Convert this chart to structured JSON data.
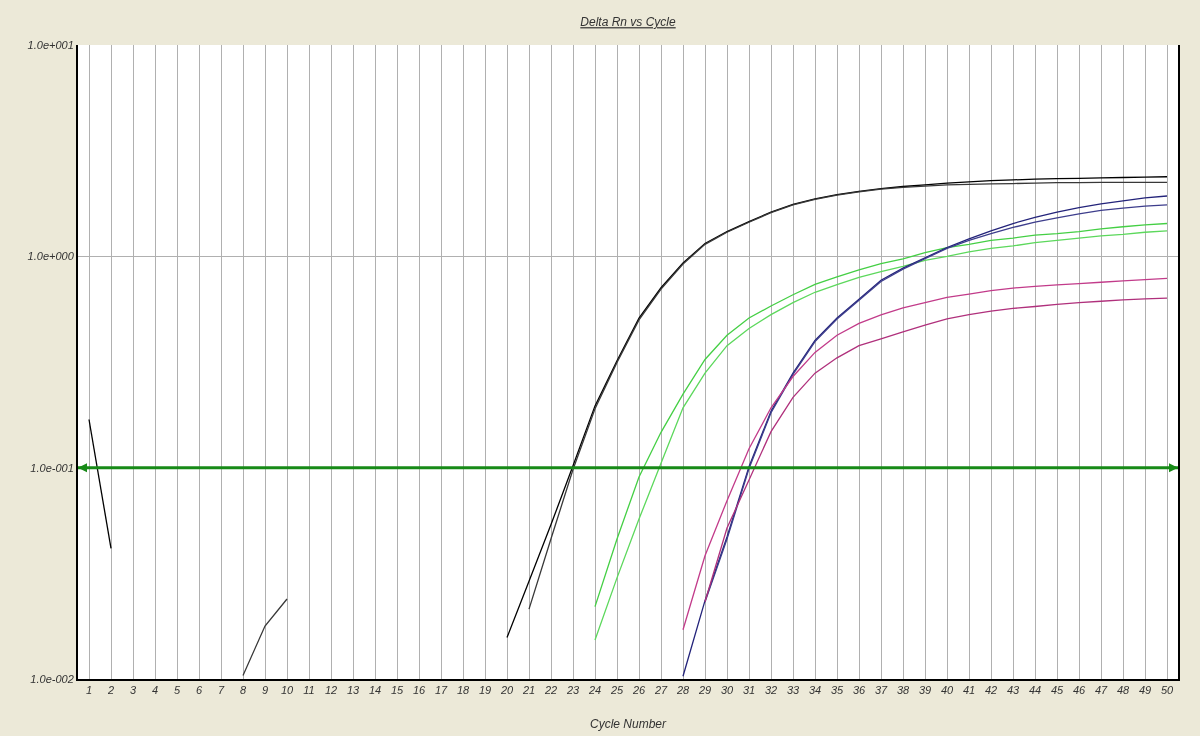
{
  "chart_data": {
    "type": "line",
    "title": "Delta Rn vs Cycle",
    "xlabel": "Cycle Number",
    "x": [
      1,
      2,
      3,
      4,
      5,
      6,
      7,
      8,
      9,
      10,
      11,
      12,
      13,
      14,
      15,
      16,
      17,
      18,
      19,
      20,
      21,
      22,
      23,
      24,
      25,
      26,
      27,
      28,
      29,
      30,
      31,
      32,
      33,
      34,
      35,
      36,
      37,
      38,
      39,
      40,
      41,
      42,
      43,
      44,
      45,
      46,
      47,
      48,
      49,
      50
    ],
    "series": [
      {
        "color": "#000000",
        "values": [
          0.169,
          0.0415,
          null,
          null,
          null,
          null,
          null,
          null,
          null,
          null,
          null,
          null,
          null,
          null,
          null,
          null,
          null,
          null,
          null,
          0.0157,
          0.029,
          0.0538,
          0.102,
          0.196,
          0.32,
          0.51,
          0.71,
          0.93,
          1.15,
          1.31,
          1.46,
          1.62,
          1.76,
          1.87,
          1.96,
          2.03,
          2.09,
          2.14,
          2.18,
          2.22,
          2.25,
          2.28,
          2.3,
          2.32,
          2.33,
          2.34,
          2.35,
          2.36,
          2.37,
          2.38
        ]
      },
      {
        "color": "#383838",
        "values": [
          null,
          null,
          null,
          null,
          null,
          null,
          null,
          0.0104,
          0.0178,
          0.0239,
          null,
          null,
          null,
          null,
          null,
          null,
          null,
          null,
          null,
          null,
          0.0214,
          0.0461,
          0.098,
          0.19,
          0.315,
          0.5,
          0.7,
          0.92,
          1.14,
          1.3,
          1.45,
          1.61,
          1.75,
          1.86,
          1.95,
          2.02,
          2.08,
          2.12,
          2.15,
          2.18,
          2.19,
          2.2,
          2.21,
          2.22,
          2.23,
          2.23,
          2.24,
          2.24,
          2.24,
          2.24
        ]
      },
      {
        "color": "#44cf44",
        "values": [
          null,
          null,
          null,
          null,
          null,
          null,
          null,
          null,
          null,
          null,
          null,
          null,
          null,
          null,
          null,
          null,
          null,
          null,
          null,
          null,
          null,
          null,
          null,
          0.022,
          0.046,
          0.0904,
          0.147,
          0.223,
          0.325,
          0.423,
          0.511,
          0.582,
          0.658,
          0.736,
          0.8,
          0.863,
          0.923,
          0.973,
          1.04,
          1.1,
          1.14,
          1.19,
          1.22,
          1.26,
          1.28,
          1.31,
          1.35,
          1.38,
          1.41,
          1.43
        ]
      },
      {
        "color": "#5cd85c",
        "values": [
          null,
          null,
          null,
          null,
          null,
          null,
          null,
          null,
          null,
          null,
          null,
          null,
          null,
          null,
          null,
          null,
          null,
          null,
          null,
          null,
          null,
          null,
          null,
          0.0153,
          0.0301,
          0.0571,
          0.105,
          0.192,
          0.28,
          0.378,
          0.456,
          0.53,
          0.604,
          0.676,
          0.734,
          0.795,
          0.846,
          0.896,
          0.958,
          1.0,
          1.05,
          1.09,
          1.12,
          1.16,
          1.19,
          1.22,
          1.25,
          1.27,
          1.3,
          1.32
        ]
      },
      {
        "color": "#23237a",
        "values": [
          null,
          null,
          null,
          null,
          null,
          null,
          null,
          null,
          null,
          null,
          null,
          null,
          null,
          null,
          null,
          null,
          null,
          null,
          null,
          null,
          null,
          null,
          null,
          null,
          null,
          null,
          null,
          0.0103,
          0.0235,
          0.047,
          0.101,
          0.185,
          0.28,
          0.4,
          0.511,
          0.627,
          0.771,
          0.879,
          0.984,
          1.1,
          1.21,
          1.32,
          1.43,
          1.53,
          1.62,
          1.7,
          1.77,
          1.83,
          1.89,
          1.93
        ]
      },
      {
        "color": "#3d3d8c",
        "values": [
          null,
          null,
          null,
          null,
          null,
          null,
          null,
          null,
          null,
          null,
          null,
          null,
          null,
          null,
          null,
          null,
          null,
          null,
          null,
          null,
          null,
          null,
          null,
          null,
          null,
          null,
          null,
          null,
          0.0231,
          0.046,
          0.099,
          0.182,
          0.276,
          0.395,
          0.505,
          0.62,
          0.76,
          0.87,
          0.975,
          1.09,
          1.19,
          1.28,
          1.37,
          1.45,
          1.52,
          1.59,
          1.65,
          1.69,
          1.73,
          1.75
        ]
      },
      {
        "color": "#c23b8a",
        "values": [
          null,
          null,
          null,
          null,
          null,
          null,
          null,
          null,
          null,
          null,
          null,
          null,
          null,
          null,
          null,
          null,
          null,
          null,
          null,
          null,
          null,
          null,
          null,
          null,
          null,
          null,
          null,
          0.0171,
          0.0383,
          0.0698,
          0.123,
          0.192,
          0.27,
          0.351,
          0.423,
          0.482,
          0.529,
          0.571,
          0.604,
          0.639,
          0.663,
          0.689,
          0.708,
          0.721,
          0.732,
          0.743,
          0.754,
          0.766,
          0.776,
          0.786
        ]
      },
      {
        "color": "#b0307c",
        "values": [
          null,
          null,
          null,
          null,
          null,
          null,
          null,
          null,
          null,
          null,
          null,
          null,
          null,
          null,
          null,
          null,
          null,
          null,
          null,
          null,
          null,
          null,
          null,
          null,
          null,
          null,
          null,
          null,
          0.0232,
          0.0518,
          0.0875,
          0.148,
          0.215,
          0.28,
          0.331,
          0.378,
          0.407,
          0.439,
          0.473,
          0.506,
          0.53,
          0.55,
          0.567,
          0.579,
          0.593,
          0.604,
          0.613,
          0.622,
          0.629,
          0.634
        ]
      }
    ],
    "xlim": [
      0.5,
      50.5
    ],
    "ylim": [
      0.01,
      10
    ],
    "xticks": [
      1,
      2,
      3,
      4,
      5,
      6,
      7,
      8,
      9,
      10,
      11,
      12,
      13,
      14,
      15,
      16,
      17,
      18,
      19,
      20,
      21,
      22,
      23,
      24,
      25,
      26,
      27,
      28,
      29,
      30,
      31,
      32,
      33,
      34,
      35,
      36,
      37,
      38,
      39,
      40,
      41,
      42,
      43,
      44,
      45,
      46,
      47,
      48,
      49,
      50
    ],
    "yticks": [
      {
        "value": 0.01,
        "label": "1.0e-002"
      },
      {
        "value": 0.1,
        "label": "1.0e-001"
      },
      {
        "value": 1,
        "label": "1.0e+000"
      },
      {
        "value": 10,
        "label": "1.0e+001"
      }
    ],
    "ref_lines": [
      {
        "axis": "y",
        "value": 0.1,
        "color": "#178a17"
      }
    ],
    "log": true,
    "grid": true
  }
}
